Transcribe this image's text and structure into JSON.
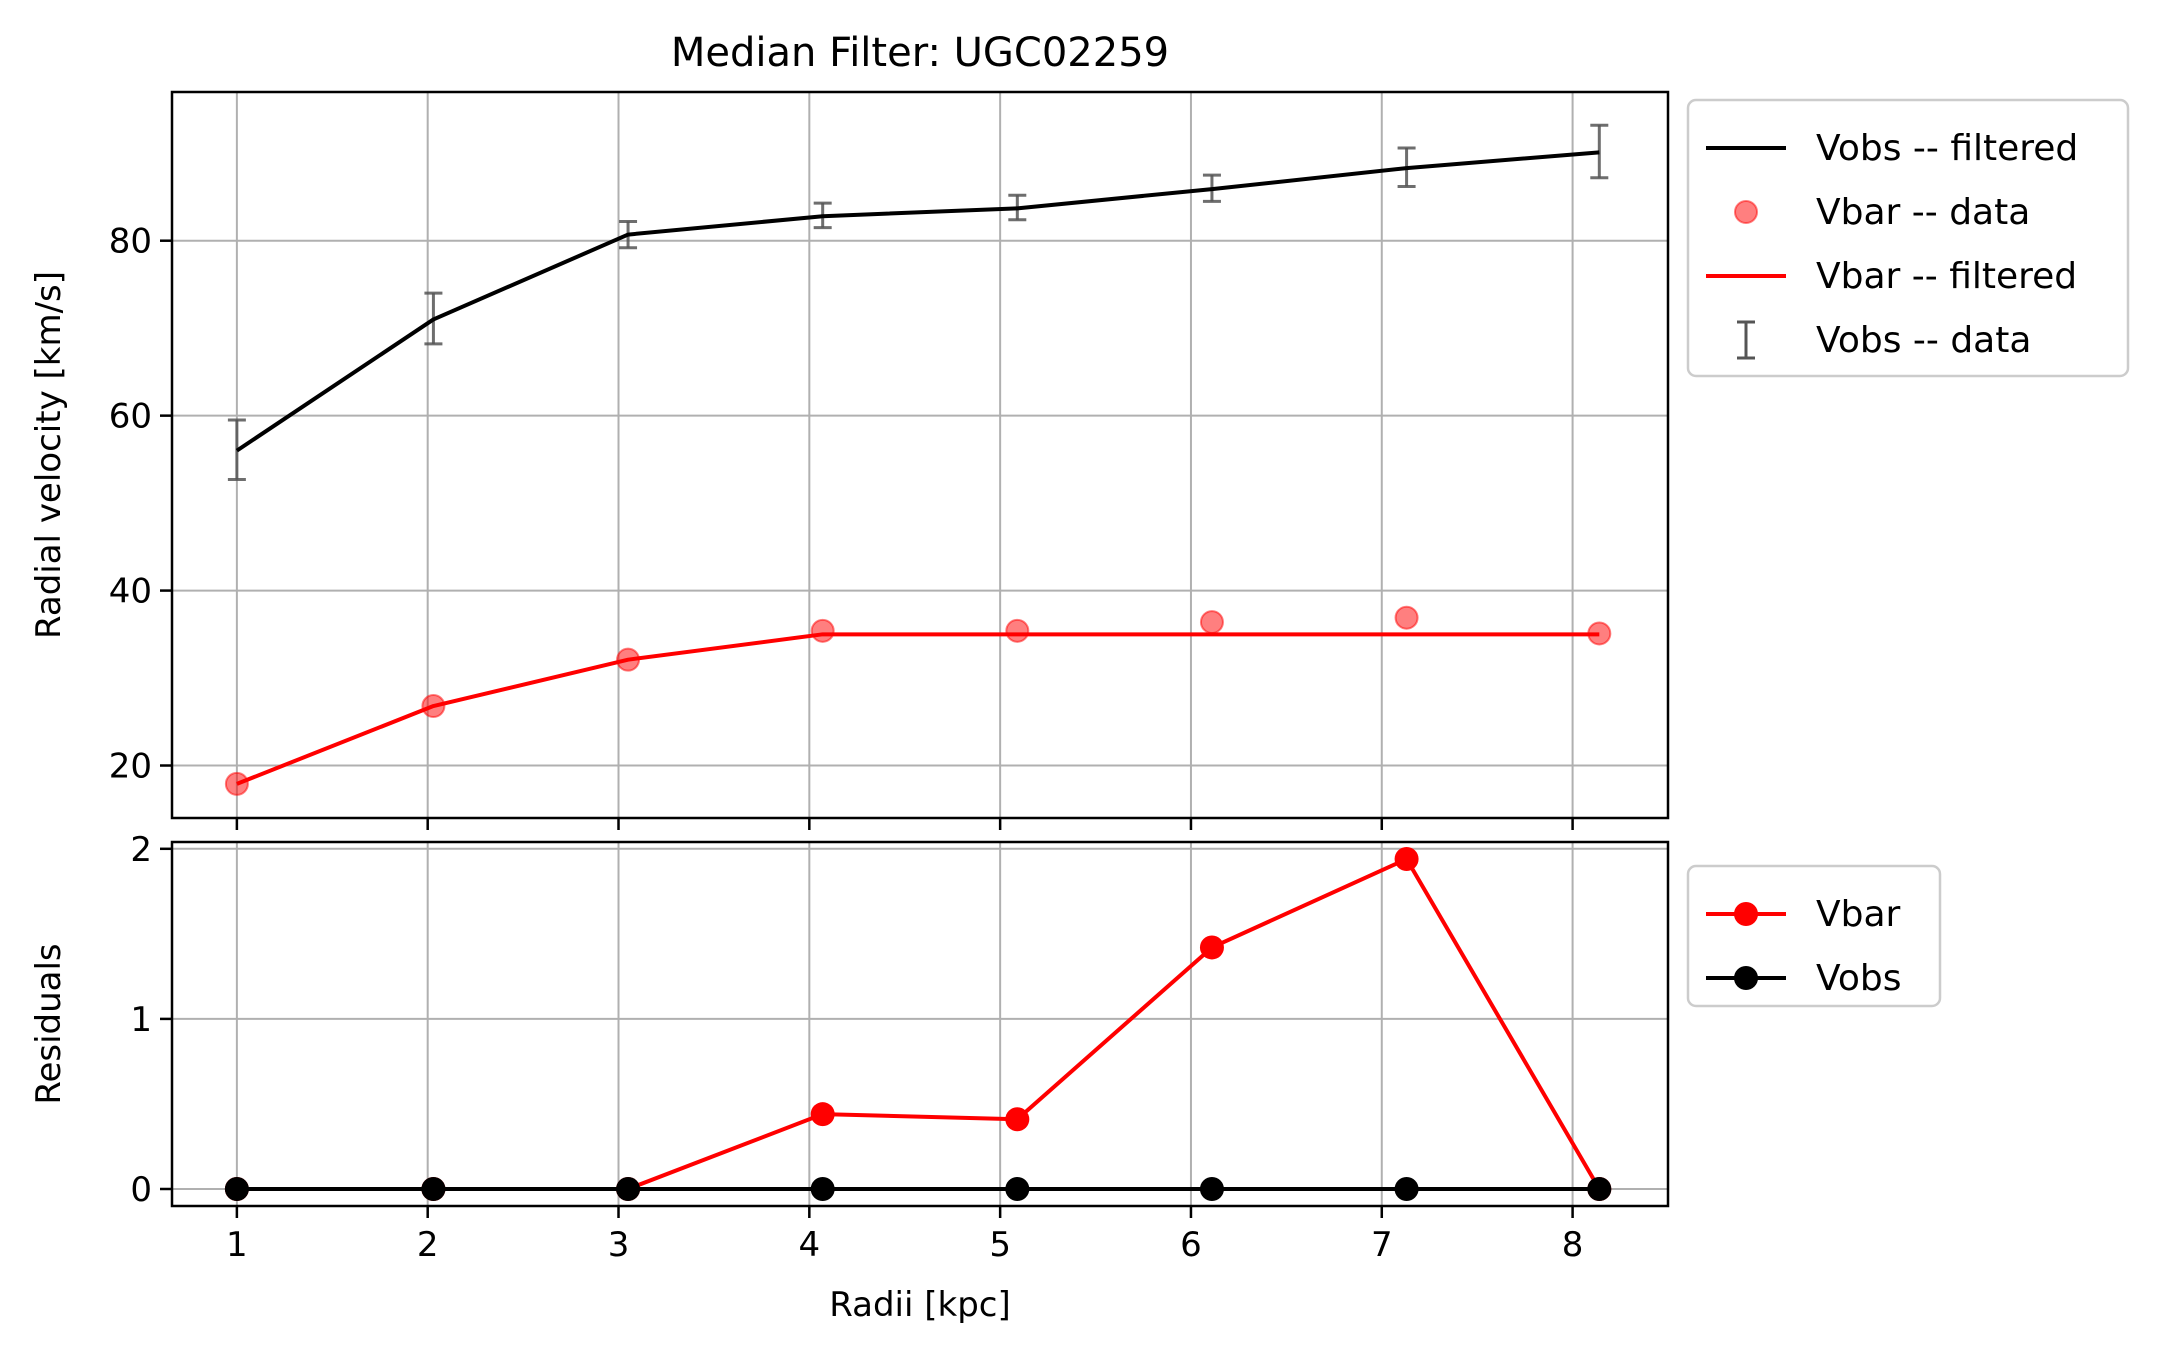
{
  "chart_data": [
    {
      "type": "line",
      "title": "Median Filter: UGC02259",
      "xlabel": "",
      "ylabel": "Radial velocity [km/s]",
      "xlim": [
        0.66,
        8.5
      ],
      "ylim": [
        14,
        97
      ],
      "xticks": [
        1,
        2,
        3,
        4,
        5,
        6,
        7,
        8
      ],
      "yticks": [
        20,
        40,
        60,
        80
      ],
      "grid": true,
      "legend_position": "outside-right-top",
      "series": [
        {
          "name": "Vobs -- filtered",
          "kind": "line",
          "color": "#000000",
          "x": [
            1.0,
            2.03,
            3.05,
            4.07,
            5.09,
            6.11,
            7.13,
            8.14
          ],
          "y": [
            56.0,
            71.0,
            80.7,
            82.8,
            83.7,
            85.9,
            88.3,
            90.1
          ]
        },
        {
          "name": "Vbar -- data",
          "kind": "scatter",
          "color": "#ff0000",
          "x": [
            1.0,
            2.03,
            3.05,
            4.07,
            5.09,
            6.11,
            7.13,
            8.14
          ],
          "y": [
            17.9,
            26.8,
            32.1,
            35.4,
            35.4,
            36.4,
            36.9,
            35.1
          ]
        },
        {
          "name": "Vbar -- filtered",
          "kind": "line",
          "color": "#ff0000",
          "x": [
            1.0,
            2.03,
            3.05,
            4.07,
            5.09,
            6.11,
            7.13,
            8.14
          ],
          "y": [
            17.9,
            26.8,
            32.1,
            35.0,
            35.0,
            35.0,
            35.0,
            35.0
          ]
        },
        {
          "name": "Vobs -- data",
          "kind": "errorbar",
          "color": "#555555",
          "x": [
            1.0,
            2.03,
            3.05,
            4.07,
            5.09,
            6.11,
            7.13,
            8.14
          ],
          "y": [
            56.1,
            71.1,
            80.7,
            82.9,
            83.8,
            86.0,
            88.4,
            90.2
          ],
          "yerr": [
            3.4,
            2.9,
            1.5,
            1.4,
            1.4,
            1.5,
            2.2,
            3.0
          ]
        }
      ]
    },
    {
      "type": "line",
      "title": "",
      "xlabel": "Radii [kpc]",
      "ylabel": "Residuals",
      "xlim": [
        0.66,
        8.5
      ],
      "ylim": [
        -0.1,
        2.04
      ],
      "xticks": [
        1,
        2,
        3,
        4,
        5,
        6,
        7,
        8
      ],
      "yticks": [
        0,
        1,
        2
      ],
      "grid": true,
      "legend_position": "outside-right-top",
      "series": [
        {
          "name": "Vbar",
          "kind": "line-marker",
          "color": "#ff0000",
          "x": [
            1.0,
            2.03,
            3.05,
            4.07,
            5.09,
            6.11,
            7.13,
            8.14
          ],
          "y": [
            0.0,
            0.0,
            0.0,
            0.44,
            0.41,
            1.42,
            1.94,
            0.0
          ]
        },
        {
          "name": "Vobs",
          "kind": "line-marker",
          "color": "#000000",
          "x": [
            1.0,
            2.03,
            3.05,
            4.07,
            5.09,
            6.11,
            7.13,
            8.14
          ],
          "y": [
            0.0,
            0.0,
            0.0,
            0.0,
            0.0,
            0.0,
            0.0,
            0.0
          ]
        }
      ]
    }
  ]
}
